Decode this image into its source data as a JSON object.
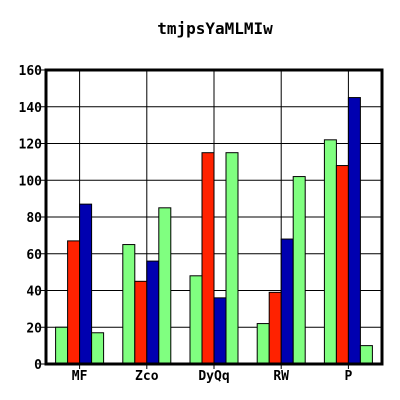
{
  "chart_data": {
    "type": "bar",
    "title": "tmjpsYaMLMIw",
    "xlabel": "",
    "ylabel": "",
    "categories": [
      "MF",
      "Zco",
      "DyQq",
      "RW",
      "P"
    ],
    "ylim": [
      0,
      160
    ],
    "yticks": [
      0,
      20,
      40,
      60,
      80,
      100,
      120,
      140,
      160
    ],
    "grid": true,
    "legend": "none",
    "series": [
      {
        "color": "#80ff80",
        "values": [
          20,
          65,
          48,
          22,
          122
        ]
      },
      {
        "color": "#ff2200",
        "values": [
          67,
          45,
          115,
          39,
          108
        ]
      },
      {
        "color": "#0000b0",
        "values": [
          87,
          56,
          36,
          68,
          145
        ]
      },
      {
        "color": "#80ff80",
        "values": [
          17,
          85,
          115,
          102,
          10
        ]
      }
    ]
  }
}
